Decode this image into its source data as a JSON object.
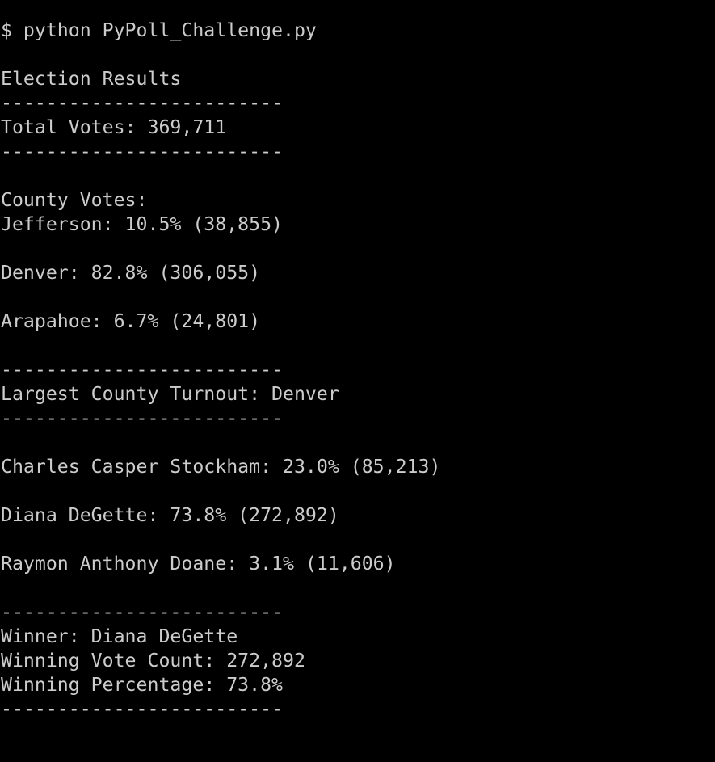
{
  "terminal": {
    "background": "#000000",
    "foreground": "#cccccc",
    "clipped_top_line": "__",
    "command": "$ python PyPoll_Challenge.py",
    "title": "Election Results",
    "separator": "-------------------------",
    "total_votes": "Total Votes: 369,711",
    "county_votes_header": "County Votes:",
    "counties": [
      "Jefferson: 10.5% (38,855)",
      "Denver: 82.8% (306,055)",
      "Arapahoe: 6.7% (24,801)"
    ],
    "largest_county": "Largest County Turnout: Denver",
    "candidates": [
      "Charles Casper Stockham: 23.0% (85,213)",
      "Diana DeGette: 73.8% (272,892)",
      "Raymon Anthony Doane: 3.1% (11,606)"
    ],
    "winner": "Winner: Diana DeGette",
    "winning_vote_count": "Winning Vote Count: 272,892",
    "winning_percentage": "Winning Percentage: 73.8%"
  }
}
